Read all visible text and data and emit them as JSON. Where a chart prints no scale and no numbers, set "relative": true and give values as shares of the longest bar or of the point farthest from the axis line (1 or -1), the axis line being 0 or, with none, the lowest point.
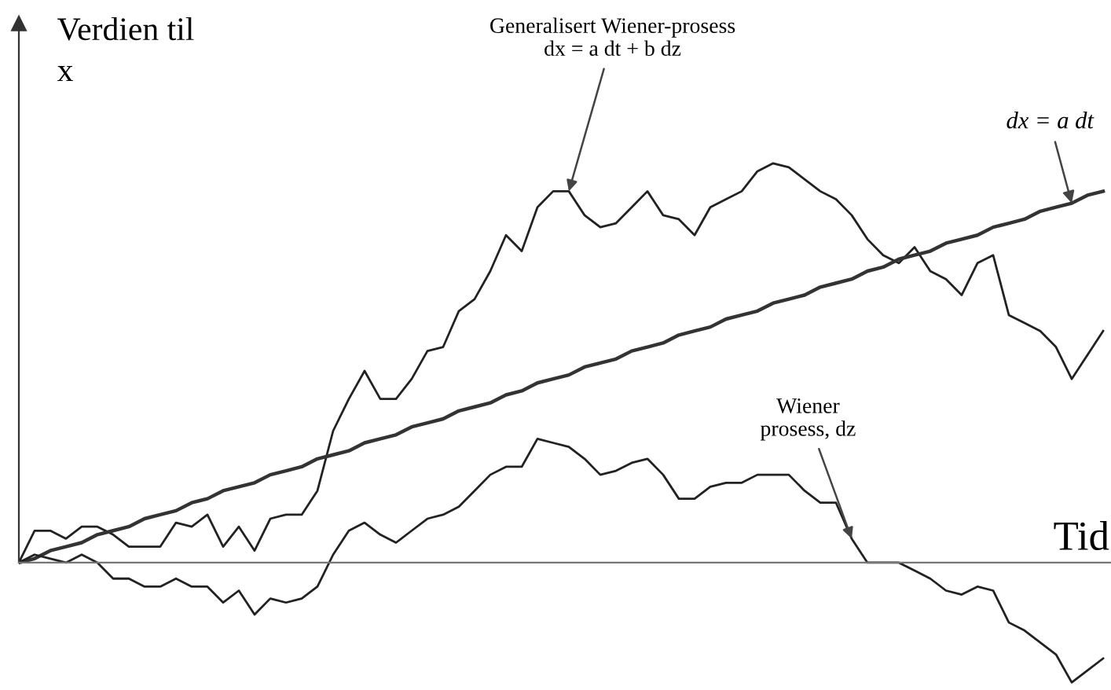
{
  "chart_data": {
    "type": "line",
    "relative": true,
    "xlabel": "Tid",
    "ylabel": "Verdien til\nx",
    "marker": "none",
    "line_style": "solid",
    "categories": [
      null,
      null,
      null,
      null,
      null,
      null,
      null,
      null,
      null,
      null,
      null,
      null,
      null,
      null,
      null,
      null,
      null,
      null,
      null,
      null,
      null,
      null,
      null,
      null,
      null,
      null,
      null,
      null,
      null,
      null,
      null,
      null,
      null,
      null,
      null,
      null,
      null,
      null,
      null,
      null,
      null,
      null,
      null,
      null,
      null,
      null,
      null,
      null,
      null,
      null,
      null,
      null,
      null,
      null,
      null,
      null,
      null,
      null,
      null,
      null,
      null,
      null,
      null,
      null,
      null,
      null,
      null,
      null,
      null,
      null
    ],
    "series": [
      {
        "name": "Generalisert Wiener-prosess\ndx = a dt + b dz",
        "color": "#222222",
        "values": [
          0,
          0.08,
          0.08,
          0.06,
          0.09,
          0.09,
          0.07,
          0.04,
          0.04,
          0.04,
          0.1,
          0.09,
          0.12,
          0.04,
          0.09,
          0.03,
          0.11,
          0.12,
          0.12,
          0.18,
          0.33,
          0.41,
          0.48,
          0.41,
          0.41,
          0.46,
          0.53,
          0.54,
          0.63,
          0.66,
          0.73,
          0.82,
          0.78,
          0.89,
          0.93,
          0.93,
          0.87,
          0.84,
          0.85,
          0.89,
          0.93,
          0.87,
          0.86,
          0.82,
          0.89,
          0.91,
          0.93,
          0.98,
          1,
          0.99,
          0.96,
          0.93,
          0.91,
          0.87,
          0.81,
          0.77,
          0.75,
          0.79,
          0.73,
          0.71,
          0.67,
          0.75,
          0.77,
          0.62,
          0.6,
          0.58,
          0.54,
          0.46,
          0.52,
          0.58
        ]
      },
      {
        "name": "dx = a dt",
        "color": "#333333",
        "values": [
          0,
          0.01,
          0.03,
          0.04,
          0.05,
          0.07,
          0.08,
          0.09,
          0.11,
          0.12,
          0.13,
          0.15,
          0.16,
          0.18,
          0.19,
          0.2,
          0.22,
          0.23,
          0.24,
          0.26,
          0.27,
          0.28,
          0.3,
          0.31,
          0.32,
          0.34,
          0.35,
          0.36,
          0.38,
          0.39,
          0.4,
          0.42,
          0.43,
          0.45,
          0.46,
          0.47,
          0.49,
          0.5,
          0.51,
          0.53,
          0.54,
          0.55,
          0.57,
          0.58,
          0.59,
          0.61,
          0.62,
          0.63,
          0.65,
          0.66,
          0.67,
          0.69,
          0.7,
          0.71,
          0.73,
          0.74,
          0.76,
          0.77,
          0.78,
          0.8,
          0.81,
          0.82,
          0.84,
          0.85,
          0.86,
          0.88,
          0.89,
          0.9,
          0.92,
          0.93
        ]
      },
      {
        "name": "Wiener\nprosess, dz",
        "color": "#222222",
        "values": [
          0,
          0.02,
          0.01,
          0,
          0.02,
          0,
          -0.04,
          -0.04,
          -0.06,
          -0.06,
          -0.04,
          -0.06,
          -0.06,
          -0.1,
          -0.07,
          -0.13,
          -0.09,
          -0.1,
          -0.09,
          -0.06,
          0.02,
          0.08,
          0.1,
          0.07,
          0.05,
          0.08,
          0.11,
          0.12,
          0.14,
          0.18,
          0.22,
          0.24,
          0.24,
          0.31,
          0.3,
          0.29,
          0.26,
          0.22,
          0.23,
          0.25,
          0.26,
          0.22,
          0.16,
          0.16,
          0.19,
          0.2,
          0.2,
          0.22,
          0.22,
          0.22,
          0.18,
          0.15,
          0.15,
          0.06,
          0,
          0,
          0,
          -0.02,
          -0.04,
          -0.07,
          -0.08,
          -0.06,
          -0.07,
          -0.15,
          -0.17,
          -0.2,
          -0.23,
          -0.3,
          -0.27,
          -0.24
        ]
      }
    ]
  }
}
